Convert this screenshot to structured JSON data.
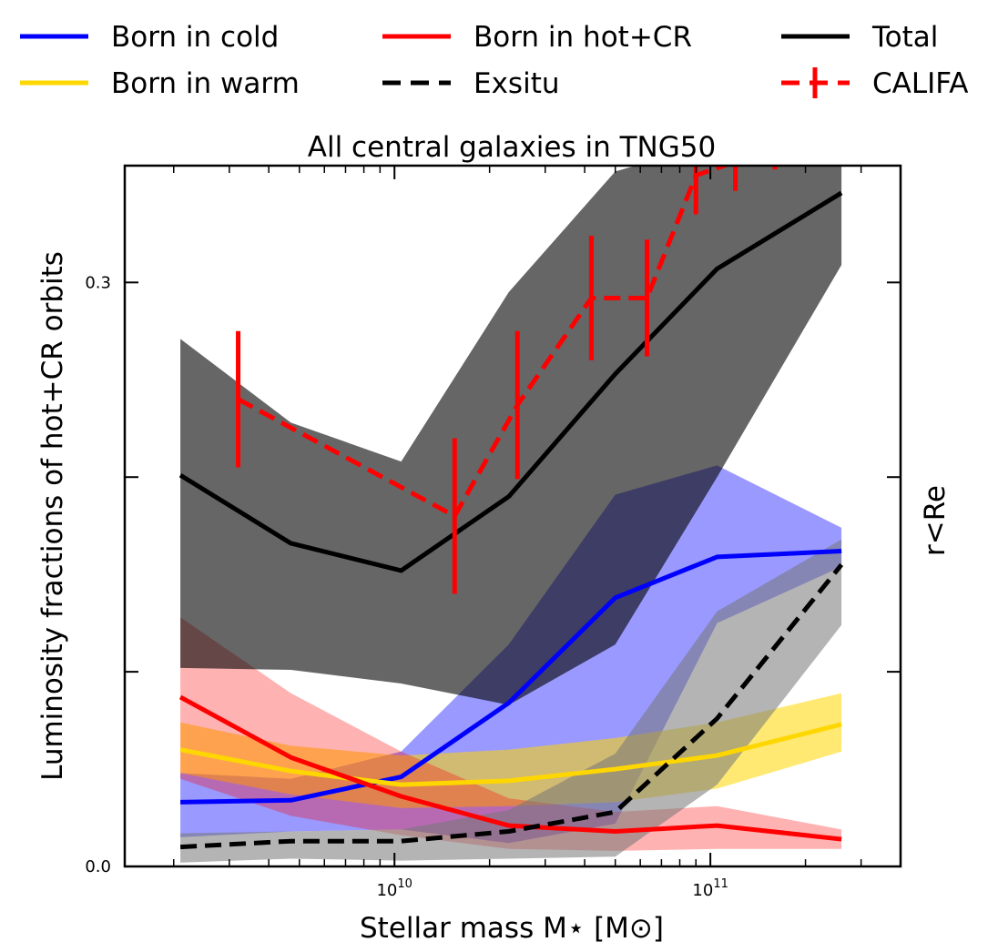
{
  "chart_data": {
    "type": "line",
    "title": "All central galaxies in TNG50",
    "xlabel": "Stellar mass M⋆ [M⊙]",
    "ylabel": "Luminosity fractions of hot+CR orbits",
    "right_label": "r<Re",
    "x_scale": "log",
    "xlim": [
      1400000000.0,
      400000000000.0
    ],
    "ylim": [
      0.0,
      0.36
    ],
    "x_ticks": [
      {
        "value": 10000000000.0,
        "base": "10",
        "exp": "10"
      },
      {
        "value": 100000000000.0,
        "base": "10",
        "exp": "11"
      }
    ],
    "y_ticks": [
      {
        "value": 0.0,
        "label": "0.0"
      },
      {
        "value": 0.1,
        "label": ""
      },
      {
        "value": 0.2,
        "label": ""
      },
      {
        "value": 0.3,
        "label": "0.3"
      }
    ],
    "legend_position": "top, above plot (3 columns)",
    "grid": false,
    "series": [
      {
        "name": "Born in cold",
        "color": "#0000ff",
        "dash": "solid",
        "x": [
          2100000000.0,
          4700000000.0,
          10500000000.0,
          23000000000.0,
          50000000000.0,
          105000000000.0,
          260000000000.0
        ],
        "y": [
          0.033,
          0.034,
          0.046,
          0.084,
          0.138,
          0.159,
          0.162
        ],
        "band_color": "#0000ff",
        "band_opacity": 0.4,
        "band_low": [
          0.015,
          0.018,
          0.019,
          0.012,
          0.022,
          0.125,
          0.154
        ],
        "band_high": [
          0.048,
          0.045,
          0.059,
          0.114,
          0.191,
          0.206,
          0.174
        ]
      },
      {
        "name": "Born in warm",
        "color": "#ffd700",
        "dash": "solid",
        "x": [
          2100000000.0,
          4700000000.0,
          10500000000.0,
          23000000000.0,
          50000000000.0,
          105000000000.0,
          260000000000.0
        ],
        "y": [
          0.06,
          0.049,
          0.042,
          0.044,
          0.05,
          0.057,
          0.073
        ],
        "band_color": "#ffd700",
        "band_opacity": 0.55,
        "band_low": [
          0.048,
          0.037,
          0.03,
          0.031,
          0.033,
          0.04,
          0.059
        ],
        "band_high": [
          0.074,
          0.062,
          0.057,
          0.06,
          0.066,
          0.074,
          0.089
        ]
      },
      {
        "name": "Born in hot+CR",
        "color": "#ff0000",
        "dash": "solid",
        "x": [
          2100000000.0,
          4700000000.0,
          10500000000.0,
          23000000000.0,
          50000000000.0,
          105000000000.0,
          260000000000.0
        ],
        "y": [
          0.087,
          0.056,
          0.036,
          0.021,
          0.018,
          0.021,
          0.014
        ],
        "band_color": "#ff0000",
        "band_opacity": 0.3,
        "band_low": [
          0.045,
          0.026,
          0.016,
          0.009,
          0.008,
          0.009,
          0.009
        ],
        "band_high": [
          0.128,
          0.089,
          0.059,
          0.035,
          0.028,
          0.031,
          0.019
        ]
      },
      {
        "name": "Exsitu",
        "color": "#000000",
        "dash": "dashed",
        "x": [
          2100000000.0,
          4700000000.0,
          10500000000.0,
          23000000000.0,
          50000000000.0,
          105000000000.0,
          260000000000.0
        ],
        "y": [
          0.01,
          0.013,
          0.013,
          0.018,
          0.028,
          0.076,
          0.155
        ],
        "band_color": "#777777",
        "band_opacity": 0.55,
        "band_low": [
          0.002,
          0.004,
          0.003,
          0.004,
          0.005,
          0.042,
          0.124
        ],
        "band_high": [
          0.017,
          0.018,
          0.019,
          0.029,
          0.058,
          0.131,
          0.168
        ]
      },
      {
        "name": "Total",
        "color": "#000000",
        "dash": "solid",
        "x": [
          2100000000.0,
          4700000000.0,
          10500000000.0,
          23000000000.0,
          50000000000.0,
          105000000000.0,
          260000000000.0
        ],
        "y": [
          0.201,
          0.166,
          0.152,
          0.19,
          0.253,
          0.307,
          0.346
        ],
        "band_color": "#000000",
        "band_opacity": 0.6,
        "band_low": [
          0.102,
          0.101,
          0.094,
          0.083,
          0.114,
          0.2,
          0.309
        ],
        "band_high": [
          0.271,
          0.228,
          0.208,
          0.295,
          0.357,
          0.372,
          0.372
        ]
      },
      {
        "name": "CALIFA",
        "color": "#ff0000",
        "dash": "dashed",
        "errorbars": true,
        "x": [
          3200000000.0,
          15500000000.0,
          24500000000.0,
          42000000000.0,
          63000000000.0,
          90000000000.0,
          120000000000.0,
          160000000000.0
        ],
        "y": [
          0.24,
          0.18,
          0.237,
          0.292,
          0.292,
          0.355,
          0.362,
          0.37
        ],
        "yerr": [
          0.035,
          0.04,
          0.038,
          0.032,
          0.03,
          0.02,
          0.015,
          0.012
        ]
      }
    ]
  }
}
